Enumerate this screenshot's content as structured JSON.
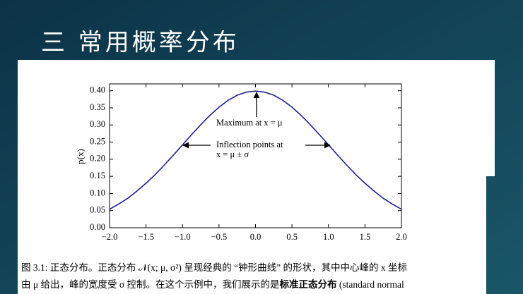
{
  "slide": {
    "title": "三 常用概率分布"
  },
  "chart_data": {
    "type": "line",
    "y_label": "p(x)",
    "x": [
      -2,
      -1.875,
      -1.75,
      -1.625,
      -1.5,
      -1.375,
      -1.25,
      -1.125,
      -1,
      -0.875,
      -0.75,
      -0.625,
      -0.5,
      -0.375,
      -0.25,
      -0.125,
      0,
      0.125,
      0.25,
      0.375,
      0.5,
      0.625,
      0.75,
      0.875,
      1,
      1.125,
      1.25,
      1.375,
      1.5,
      1.625,
      1.75,
      1.875,
      2
    ],
    "series": [
      {
        "name": "p(x)",
        "color": "#1f1f8f",
        "values": [
          0.054,
          0.069,
          0.086,
          0.107,
          0.13,
          0.155,
          0.183,
          0.212,
          0.242,
          0.272,
          0.301,
          0.328,
          0.352,
          0.372,
          0.387,
          0.396,
          0.399,
          0.396,
          0.387,
          0.372,
          0.352,
          0.328,
          0.301,
          0.272,
          0.242,
          0.212,
          0.183,
          0.155,
          0.13,
          0.107,
          0.086,
          0.069,
          0.054
        ]
      }
    ],
    "xlim": [
      -2,
      2
    ],
    "ylim": [
      0,
      0.42
    ],
    "xticks": [
      {
        "value": -2,
        "label": "−2.0"
      },
      {
        "value": -1.5,
        "label": "−1.5"
      },
      {
        "value": -1,
        "label": "−1.0"
      },
      {
        "value": -0.5,
        "label": "−0.5"
      },
      {
        "value": 0,
        "label": "0.0"
      },
      {
        "value": 0.5,
        "label": "0.5"
      },
      {
        "value": 1,
        "label": "1.0"
      },
      {
        "value": 1.5,
        "label": "1.5"
      },
      {
        "value": 2,
        "label": "2.0"
      }
    ],
    "yticks": [
      {
        "value": 0,
        "label": "0.00"
      },
      {
        "value": 0.05,
        "label": "0.05"
      },
      {
        "value": 0.1,
        "label": "0.10"
      },
      {
        "value": 0.15,
        "label": "0.15"
      },
      {
        "value": 0.2,
        "label": "0.20"
      },
      {
        "value": 0.25,
        "label": "0.25"
      },
      {
        "value": 0.3,
        "label": "0.30"
      },
      {
        "value": 0.35,
        "label": "0.35"
      },
      {
        "value": 0.4,
        "label": "0.40"
      }
    ],
    "annotations": [
      "Maximum at x = μ",
      "Inflection points at",
      "x = μ ± σ"
    ]
  },
  "caption": {
    "line1": "图 3.1: 正态分布。正态分布 𝒩(x; μ, σ²) 呈现经典的 “钟形曲线” 的形状，其中中心峰的 x 坐标",
    "line2_start": "由 μ 给出，峰的宽度受 σ 控制。在这个示例中，我们展示的是",
    "line2_bold": "标准正态分布",
    "line2_end": " (standard normal"
  }
}
